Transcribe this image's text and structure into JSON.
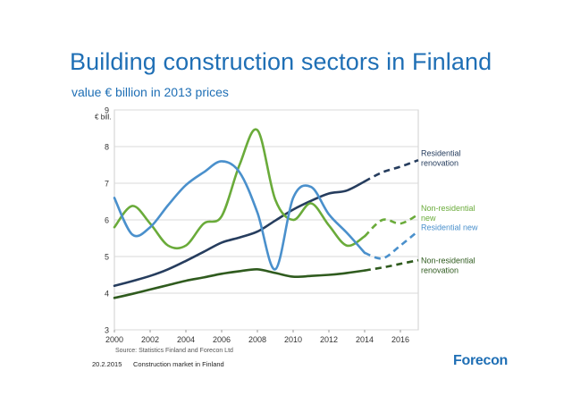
{
  "header": {
    "title": "Building construction sectors in Finland",
    "subtitle": "value € billion in 2013 prices"
  },
  "footer": {
    "source": "Source: Statistics Finland and Forecon Ltd",
    "date": "20.2.2015",
    "text": "Construction market in Finland",
    "logo": "Forecon"
  },
  "chart_data": {
    "type": "line",
    "ylabel": "€ bill.",
    "ylim": [
      3,
      9
    ],
    "xlim": [
      2000,
      2017
    ],
    "x_ticks": [
      2000,
      2002,
      2004,
      2006,
      2008,
      2010,
      2012,
      2014,
      2016
    ],
    "y_ticks": [
      3,
      4,
      5,
      6,
      7,
      8,
      9
    ],
    "grid": "horizontal",
    "forecast_from": 2014,
    "series": [
      {
        "name": "Residential renovation",
        "label_lines": [
          "Residential",
          "renovation"
        ],
        "color": "#263d5e",
        "x": [
          2000,
          2001,
          2002,
          2003,
          2004,
          2005,
          2006,
          2007,
          2008,
          2009,
          2010,
          2011,
          2012,
          2013,
          2014,
          2015,
          2016,
          2017
        ],
        "y": [
          4.2,
          4.33,
          4.47,
          4.65,
          4.88,
          5.13,
          5.38,
          5.52,
          5.68,
          5.98,
          6.28,
          6.52,
          6.72,
          6.8,
          7.05,
          7.3,
          7.45,
          7.63
        ]
      },
      {
        "name": "Non-residential new",
        "label_lines": [
          "Non-residential",
          "new"
        ],
        "color": "#6aab3a",
        "x": [
          2000,
          2001,
          2002,
          2003,
          2004,
          2005,
          2006,
          2007,
          2008,
          2009,
          2010,
          2011,
          2012,
          2013,
          2014,
          2015,
          2016,
          2017
        ],
        "y": [
          5.8,
          6.38,
          5.9,
          5.3,
          5.3,
          5.9,
          6.1,
          7.5,
          8.45,
          6.55,
          6.0,
          6.45,
          5.85,
          5.3,
          5.55,
          6.0,
          5.9,
          6.15
        ]
      },
      {
        "name": "Residential new",
        "label_lines": [
          "Residential new"
        ],
        "color": "#4a90cc",
        "x": [
          2000,
          2001,
          2002,
          2003,
          2004,
          2005,
          2006,
          2007,
          2008,
          2009,
          2010,
          2011,
          2012,
          2013,
          2014,
          2015,
          2016,
          2017
        ],
        "y": [
          6.6,
          5.6,
          5.8,
          6.4,
          6.95,
          7.3,
          7.6,
          7.3,
          6.2,
          4.65,
          6.6,
          6.9,
          6.15,
          5.65,
          5.1,
          4.95,
          5.3,
          5.7
        ]
      },
      {
        "name": "Non-residential renovation",
        "label_lines": [
          "Non-residential",
          "renovation"
        ],
        "color": "#2f5b1e",
        "x": [
          2000,
          2001,
          2002,
          2003,
          2004,
          2005,
          2006,
          2007,
          2008,
          2009,
          2010,
          2011,
          2012,
          2013,
          2014,
          2015,
          2016,
          2017
        ],
        "y": [
          3.87,
          3.98,
          4.1,
          4.22,
          4.34,
          4.43,
          4.53,
          4.6,
          4.65,
          4.55,
          4.45,
          4.47,
          4.5,
          4.55,
          4.62,
          4.7,
          4.8,
          4.9
        ]
      }
    ]
  }
}
